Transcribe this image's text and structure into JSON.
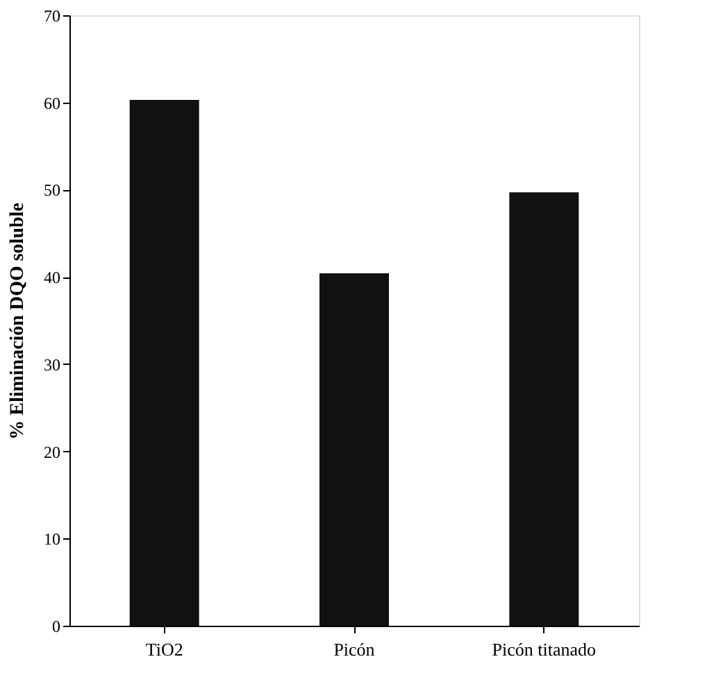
{
  "chart_data": {
    "type": "bar",
    "ylabel": "% Eliminación DQO soluble",
    "categories": [
      "TiO2",
      "Picón",
      "Picón titanado"
    ],
    "values": [
      60.3,
      40.4,
      49.7
    ],
    "color": "#111111",
    "ylim": [
      0,
      70
    ],
    "yticks": [
      0,
      10,
      20,
      30,
      40,
      50,
      60,
      70
    ],
    "grid": false
  }
}
